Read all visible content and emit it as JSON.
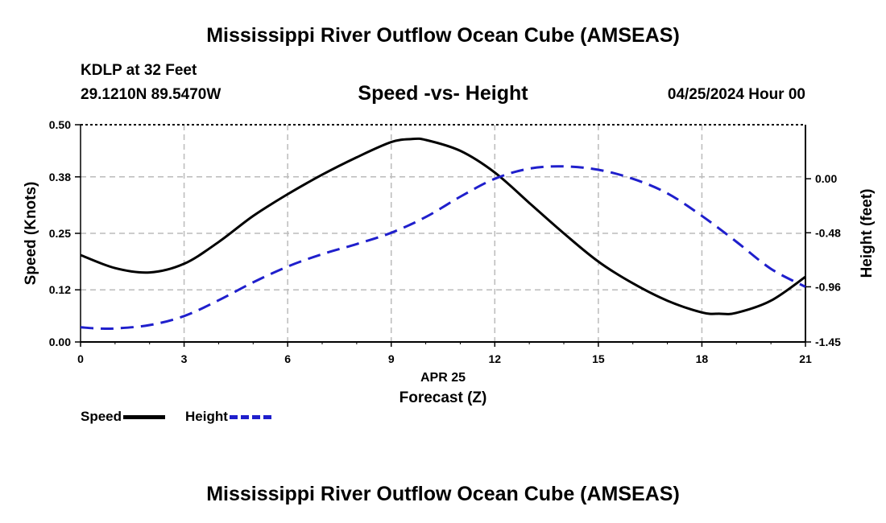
{
  "header": {
    "title": "Mississippi River Outflow Ocean Cube (AMSEAS)",
    "station": "KDLP at 32 Feet",
    "coordinates": "29.1210N  89.5470W",
    "subtitle": "Speed -vs- Height",
    "datetime": "04/25/2024 Hour 00"
  },
  "footer": {
    "title": "Mississippi River Outflow Ocean Cube (AMSEAS)"
  },
  "legend": {
    "speed_label": "Speed",
    "height_label": "Height"
  },
  "colors": {
    "speed": "#000000",
    "height": "#1f1fcc",
    "grid": "#bbbbbb"
  },
  "chart_data": {
    "type": "line",
    "title": "Speed -vs- Height",
    "xlabel": "Forecast (Z)",
    "xdate_label": "APR 25",
    "ylabel_left": "Speed (Knots)",
    "ylabel_right": "Height (feet)",
    "xlim": [
      0,
      21
    ],
    "x_ticks": [
      0,
      3,
      6,
      9,
      12,
      15,
      18,
      21
    ],
    "ylim_left": [
      0,
      0.5
    ],
    "y_ticks_left": [
      "0.00",
      "0.12",
      "0.25",
      "0.38",
      "0.50"
    ],
    "ylim_right": [
      -1.45,
      0.48
    ],
    "y_ticks_right": [
      "-1.45",
      "-0.96",
      "-0.48",
      "0.00"
    ],
    "grid": true,
    "series": [
      {
        "name": "Speed",
        "axis": "left",
        "x": [
          0,
          1,
          2,
          3,
          4,
          5,
          6,
          7,
          8,
          9,
          9.6,
          10,
          11,
          12,
          13,
          14,
          15,
          16,
          17,
          18,
          18.5,
          19,
          20,
          21
        ],
        "values": [
          0.2,
          0.17,
          0.16,
          0.18,
          0.23,
          0.29,
          0.34,
          0.385,
          0.425,
          0.46,
          0.467,
          0.465,
          0.44,
          0.39,
          0.32,
          0.25,
          0.185,
          0.135,
          0.095,
          0.068,
          0.065,
          0.067,
          0.095,
          0.15
        ]
      },
      {
        "name": "Height",
        "axis": "right",
        "x": [
          0,
          0.5,
          1,
          2,
          3,
          4,
          5,
          6,
          7,
          8,
          9,
          10,
          11,
          12,
          13,
          14,
          15,
          16,
          17,
          18,
          19,
          20,
          21
        ],
        "values": [
          -1.32,
          -1.33,
          -1.33,
          -1.3,
          -1.22,
          -1.08,
          -0.92,
          -0.78,
          -0.67,
          -0.58,
          -0.48,
          -0.34,
          -0.16,
          0.0,
          0.09,
          0.11,
          0.08,
          0.0,
          -0.13,
          -0.33,
          -0.56,
          -0.8,
          -0.96
        ]
      }
    ]
  }
}
